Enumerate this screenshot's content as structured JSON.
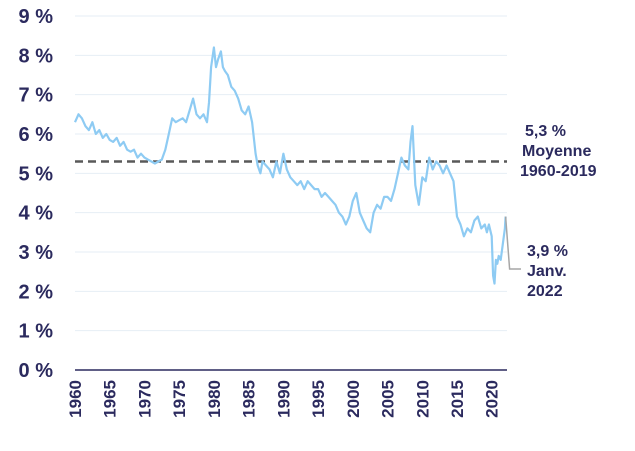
{
  "chart_data": {
    "type": "line",
    "title": "",
    "xlabel": "",
    "ylabel": "",
    "xlim": [
      1960,
      2022.2
    ],
    "ylim": [
      0,
      9
    ],
    "grid": true,
    "y_ticks": [
      "0 %",
      "1 %",
      "2 %",
      "3 %",
      "4 %",
      "5 %",
      "6 %",
      "7 %",
      "8 %",
      "9 %"
    ],
    "y_tick_values": [
      0,
      1,
      2,
      3,
      4,
      5,
      6,
      7,
      8,
      9
    ],
    "x_ticks": [
      "1960",
      "1965",
      "1970",
      "1975",
      "1980",
      "1985",
      "1990",
      "1995",
      "2000",
      "2005",
      "2010",
      "2015",
      "2020"
    ],
    "x_tick_values": [
      1960,
      1965,
      1970,
      1975,
      1980,
      1985,
      1990,
      1995,
      2000,
      2005,
      2010,
      2015,
      2020
    ],
    "series": [
      {
        "color": "#8ecbf3",
        "x": [
          1960,
          1960.5,
          1961,
          1961.5,
          1962,
          1962.5,
          1963,
          1963.5,
          1964,
          1964.5,
          1965,
          1965.5,
          1966,
          1966.5,
          1967,
          1967.5,
          1968,
          1968.5,
          1969,
          1969.5,
          1970,
          1970.5,
          1971,
          1971.5,
          1972,
          1972.5,
          1973,
          1973.5,
          1974,
          1974.5,
          1975,
          1975.5,
          1976,
          1976.5,
          1977,
          1977.5,
          1978,
          1978.5,
          1979,
          1979.3,
          1979.6,
          1980,
          1980.3,
          1980.6,
          1981,
          1981.3,
          1981.6,
          1982,
          1982.5,
          1983,
          1983.5,
          1984,
          1984.5,
          1985,
          1985.5,
          1986,
          1986.3,
          1986.7,
          1987,
          1987.5,
          1988,
          1988.5,
          1989,
          1989.5,
          1990,
          1990.5,
          1991,
          1991.5,
          1992,
          1992.5,
          1993,
          1993.5,
          1994,
          1994.5,
          1995,
          1995.5,
          1996,
          1996.5,
          1997,
          1997.5,
          1998,
          1998.5,
          1999,
          1999.5,
          2000,
          2000.5,
          2001,
          2001.5,
          2002,
          2002.5,
          2003,
          2003.5,
          2004,
          2004.5,
          2005,
          2005.5,
          2006,
          2006.5,
          2007,
          2007.5,
          2008,
          2008.3,
          2008.6,
          2009,
          2009.5,
          2010,
          2010.5,
          2011,
          2011.5,
          2012,
          2012.5,
          2013,
          2013.5,
          2014,
          2014.5,
          2015,
          2015.5,
          2016,
          2016.5,
          2017,
          2017.5,
          2018,
          2018.5,
          2019,
          2019.3,
          2019.6,
          2020,
          2020.2,
          2020.4,
          2020.6,
          2020.8,
          2021,
          2021.3,
          2021.6,
          2021.9,
          2022
        ],
        "values": [
          6.3,
          6.5,
          6.4,
          6.2,
          6.1,
          6.3,
          6.0,
          6.1,
          5.9,
          6.0,
          5.85,
          5.8,
          5.9,
          5.7,
          5.8,
          5.6,
          5.55,
          5.6,
          5.4,
          5.5,
          5.4,
          5.35,
          5.3,
          5.25,
          5.3,
          5.35,
          5.6,
          6.0,
          6.4,
          6.3,
          6.35,
          6.4,
          6.3,
          6.6,
          6.9,
          6.5,
          6.4,
          6.5,
          6.3,
          6.8,
          7.7,
          8.2,
          7.7,
          7.9,
          8.1,
          7.7,
          7.6,
          7.5,
          7.2,
          7.1,
          6.9,
          6.6,
          6.5,
          6.7,
          6.3,
          5.5,
          5.2,
          5.0,
          5.3,
          5.2,
          5.1,
          4.9,
          5.3,
          5.0,
          5.5,
          5.1,
          4.9,
          4.8,
          4.7,
          4.8,
          4.6,
          4.8,
          4.7,
          4.6,
          4.6,
          4.4,
          4.5,
          4.4,
          4.3,
          4.2,
          4.0,
          3.9,
          3.7,
          3.9,
          4.3,
          4.5,
          4.0,
          3.8,
          3.6,
          3.5,
          4.0,
          4.2,
          4.1,
          4.4,
          4.4,
          4.3,
          4.6,
          5.0,
          5.4,
          5.2,
          5.1,
          5.8,
          6.2,
          4.7,
          4.2,
          4.9,
          4.8,
          5.4,
          5.1,
          5.3,
          5.2,
          5.0,
          5.2,
          5.0,
          4.8,
          3.9,
          3.7,
          3.4,
          3.6,
          3.5,
          3.8,
          3.9,
          3.6,
          3.7,
          3.5,
          3.7,
          3.4,
          2.4,
          2.2,
          2.8,
          2.7,
          2.9,
          2.8,
          3.2,
          3.6,
          3.9
        ]
      }
    ],
    "reference_line": {
      "value": 5.3,
      "color": "#595959"
    },
    "annotations": [
      {
        "lines": [
          "5,3 %",
          "Moyenne",
          "1960-2019"
        ]
      },
      {
        "lines": [
          "3,9 %",
          "Janv.",
          "2022"
        ]
      }
    ],
    "colors": {
      "axis": "#2b2a5e",
      "grid": "#e6eef5",
      "series": "#8ecbf3",
      "annotation_line": "#a6a6a6"
    }
  }
}
